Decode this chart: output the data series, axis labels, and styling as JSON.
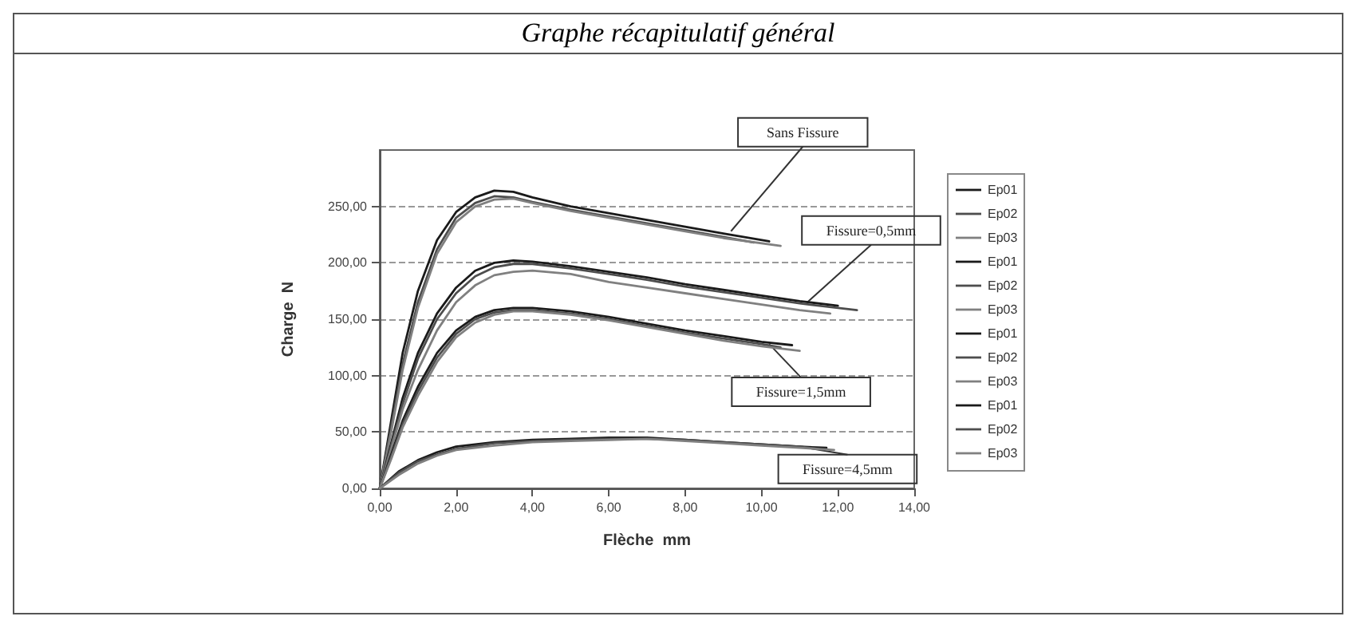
{
  "chart_data": {
    "type": "line",
    "title": "Graphe récapitulatif général",
    "xlabel": "Flèche  mm",
    "ylabel": "Charge  N",
    "xlim": [
      0,
      14
    ],
    "ylim": [
      0,
      300
    ],
    "xticks": [
      {
        "value": 0,
        "label": "0,00"
      },
      {
        "value": 2,
        "label": "2,00"
      },
      {
        "value": 4,
        "label": "4,00"
      },
      {
        "value": 6,
        "label": "6,00"
      },
      {
        "value": 8,
        "label": "8,00"
      },
      {
        "value": 10,
        "label": "10,00"
      },
      {
        "value": 12,
        "label": "12,00"
      },
      {
        "value": 14,
        "label": "14,00"
      }
    ],
    "yticks": [
      {
        "value": 0,
        "label": "0,00"
      },
      {
        "value": 50,
        "label": "50,00"
      },
      {
        "value": 100,
        "label": "100,00"
      },
      {
        "value": 150,
        "label": "150,00"
      },
      {
        "value": 200,
        "label": "200,00"
      },
      {
        "value": 250,
        "label": "250,00"
      }
    ],
    "grid": "y",
    "legend": "right",
    "marker": "none",
    "line_style": "solid",
    "annotations": [
      {
        "text": "Sans Fissure",
        "x": 9.2,
        "y": 228
      },
      {
        "text": "Fissure=0,5mm",
        "x": 11.2,
        "y": 165
      },
      {
        "text": "Fissure=1,5mm",
        "x": 10.2,
        "y": 128
      },
      {
        "text": "Fissure=4,5mm",
        "x": 11,
        "y": 37
      }
    ],
    "series": [
      {
        "name": "Ep01",
        "color": "#1a1a1a",
        "x": [
          0,
          0.3,
          0.6,
          1,
          1.5,
          2,
          2.5,
          3,
          3.5,
          4,
          5,
          6,
          7,
          8,
          9,
          10.2
        ],
        "values": [
          0,
          60,
          120,
          175,
          220,
          245,
          258,
          264,
          263,
          258,
          250,
          244,
          238,
          232,
          226,
          219
        ]
      },
      {
        "name": "Ep02",
        "color": "#4d4d4d",
        "x": [
          0,
          0.3,
          0.6,
          1,
          1.5,
          2,
          2.5,
          3,
          3.5,
          4,
          5,
          6,
          7,
          8,
          9,
          9.8
        ],
        "values": [
          0,
          55,
          110,
          165,
          212,
          240,
          253,
          259,
          258,
          254,
          247,
          241,
          235,
          229,
          223,
          218
        ]
      },
      {
        "name": "Ep03",
        "color": "#808080",
        "x": [
          0,
          0.3,
          0.6,
          1,
          1.5,
          2,
          2.5,
          3,
          3.5,
          4,
          5,
          6,
          7,
          8,
          9,
          10.5
        ],
        "values": [
          0,
          50,
          105,
          160,
          208,
          236,
          250,
          256,
          257,
          253,
          246,
          240,
          234,
          228,
          222,
          215
        ]
      },
      {
        "name": "Ep01",
        "color": "#1a1a1a",
        "x": [
          0,
          0.3,
          0.6,
          1,
          1.5,
          2,
          2.5,
          3,
          3.5,
          4,
          5,
          6,
          7,
          8,
          9,
          10,
          11,
          12
        ],
        "values": [
          0,
          40,
          80,
          120,
          155,
          178,
          193,
          200,
          202,
          201,
          197,
          192,
          187,
          181,
          176,
          171,
          166,
          162
        ]
      },
      {
        "name": "Ep02",
        "color": "#4d4d4d",
        "x": [
          0,
          0.3,
          0.6,
          1,
          1.5,
          2,
          2.5,
          3,
          3.5,
          4,
          5,
          6,
          7,
          8,
          9,
          10,
          11,
          12.5
        ],
        "values": [
          0,
          38,
          75,
          115,
          150,
          173,
          188,
          196,
          199,
          199,
          195,
          190,
          185,
          179,
          174,
          169,
          164,
          158
        ]
      },
      {
        "name": "Ep03",
        "color": "#808080",
        "x": [
          0,
          0.3,
          0.6,
          1,
          1.5,
          2,
          2.5,
          3,
          3.5,
          4,
          5,
          6,
          7,
          8,
          9,
          10,
          11,
          11.8
        ],
        "values": [
          0,
          35,
          70,
          105,
          140,
          165,
          180,
          189,
          192,
          193,
          190,
          183,
          178,
          173,
          168,
          163,
          158,
          155
        ]
      },
      {
        "name": "Ep01",
        "color": "#1a1a1a",
        "x": [
          0,
          0.3,
          0.6,
          1,
          1.5,
          2,
          2.5,
          3,
          3.5,
          4,
          5,
          6,
          7,
          8,
          9,
          10,
          10.8
        ],
        "values": [
          0,
          30,
          60,
          90,
          120,
          140,
          152,
          158,
          160,
          160,
          157,
          152,
          146,
          140,
          135,
          130,
          127
        ]
      },
      {
        "name": "Ep02",
        "color": "#4d4d4d",
        "x": [
          0,
          0.3,
          0.6,
          1,
          1.5,
          2,
          2.5,
          3,
          3.5,
          4,
          5,
          6,
          7,
          8,
          9,
          10,
          10.5
        ],
        "values": [
          0,
          28,
          57,
          86,
          116,
          137,
          150,
          156,
          158,
          158,
          155,
          150,
          144,
          138,
          133,
          128,
          125
        ]
      },
      {
        "name": "Ep03",
        "color": "#808080",
        "x": [
          0,
          0.3,
          0.6,
          1,
          1.5,
          2,
          2.5,
          3,
          3.5,
          4,
          5,
          6,
          7,
          8,
          9,
          10,
          11
        ],
        "values": [
          0,
          26,
          54,
          82,
          112,
          134,
          147,
          154,
          157,
          157,
          154,
          149,
          143,
          137,
          131,
          126,
          122
        ]
      },
      {
        "name": "Ep01",
        "color": "#1a1a1a",
        "x": [
          0,
          0.5,
          1,
          1.5,
          2,
          3,
          4,
          5,
          6,
          7,
          8,
          9,
          10,
          11,
          11.7
        ],
        "values": [
          0,
          15,
          25,
          32,
          37,
          41,
          43,
          44,
          45,
          45,
          43,
          41,
          39,
          37,
          36
        ]
      },
      {
        "name": "Ep02",
        "color": "#4d4d4d",
        "x": [
          0,
          0.5,
          1,
          1.5,
          2,
          3,
          4,
          5,
          6,
          7,
          8,
          9,
          10,
          11,
          11.5
        ],
        "values": [
          0,
          14,
          24,
          30,
          35,
          40,
          42,
          43,
          44,
          44,
          43,
          41,
          39,
          37,
          35
        ]
      },
      {
        "name": "Ep03",
        "color": "#808080",
        "x": [
          0,
          0.5,
          1,
          1.5,
          2,
          3,
          4,
          5,
          6,
          7,
          8,
          9,
          10,
          11,
          11.9
        ],
        "values": [
          0,
          12,
          22,
          29,
          34,
          38,
          41,
          42,
          43,
          44,
          42,
          40,
          38,
          36,
          34
        ]
      }
    ]
  }
}
